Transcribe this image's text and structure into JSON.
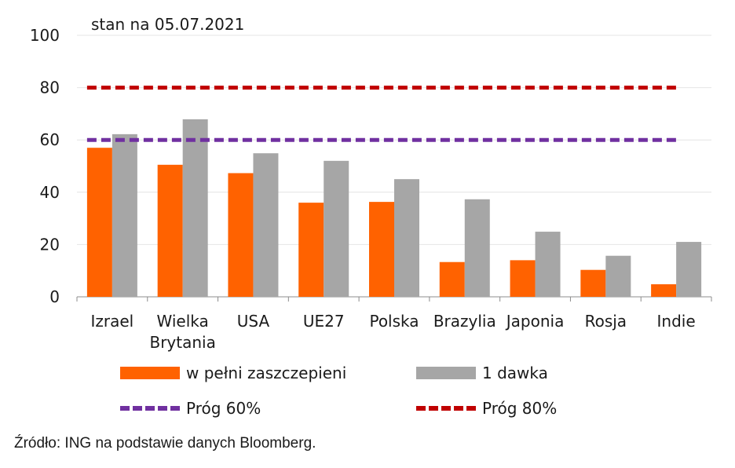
{
  "chart_data": {
    "type": "bar",
    "note": "stan na 05.07.2021",
    "categories": [
      [
        "Izrael"
      ],
      [
        "Wielka",
        "Brytania"
      ],
      [
        "USA"
      ],
      [
        "UE27"
      ],
      [
        "Polska"
      ],
      [
        "Brazylia"
      ],
      [
        "Japonia"
      ],
      [
        "Rosja"
      ],
      [
        "Indie"
      ]
    ],
    "series": [
      {
        "name": "w pełni zaszczepieni",
        "color": "#ff6200",
        "values": [
          57,
          50.5,
          47.3,
          36,
          36.3,
          13.3,
          14,
          10.3,
          4.8
        ]
      },
      {
        "name": "1 dawka",
        "color": "#a6a6a6",
        "values": [
          62.2,
          67.9,
          54.9,
          52,
          45,
          37.3,
          24.9,
          15.7,
          21
        ]
      }
    ],
    "thresholds": [
      {
        "name": "Próg 60%",
        "value": 60,
        "color": "#7030a0"
      },
      {
        "name": "Próg 80%",
        "value": 80,
        "color": "#c00000"
      }
    ],
    "ylim": [
      0,
      100
    ],
    "yticks": [
      0,
      20,
      40,
      60,
      80,
      100
    ],
    "xlabel": "",
    "ylabel": "",
    "grid": true,
    "legend": "bottom"
  },
  "legend": {
    "full": "w pełni zaszczepieni",
    "dose": "1 dawka",
    "p60": "Próg 60%",
    "p80": "Próg 80%"
  },
  "source": "Źródło: ING na podstawie danych Bloomberg."
}
